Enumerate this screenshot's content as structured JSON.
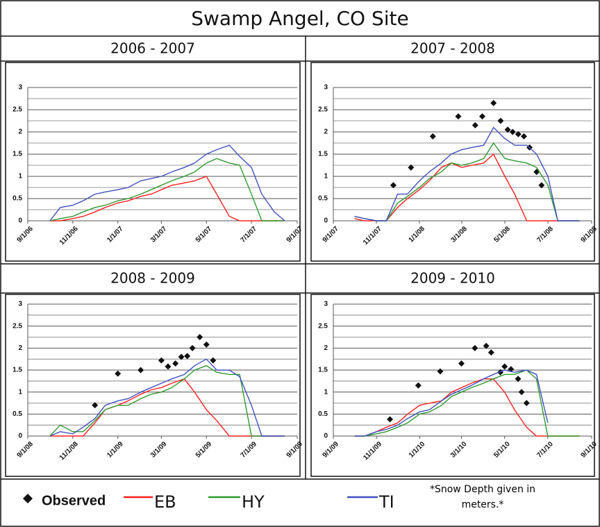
{
  "title": "Swamp Angel, CO Site",
  "note": "*Snow Depth given in meters.*",
  "chart_data": [
    {
      "type": "line",
      "title": "2006 - 2007",
      "x": [
        "2006-10-01",
        "2006-10-15",
        "2006-11-01",
        "2006-11-15",
        "2006-12-01",
        "2006-12-15",
        "2007-01-01",
        "2007-01-15",
        "2007-02-01",
        "2007-02-15",
        "2007-03-01",
        "2007-03-15",
        "2007-04-01",
        "2007-04-15",
        "2007-05-01",
        "2007-05-15",
        "2007-06-01",
        "2007-06-15",
        "2007-07-01",
        "2007-07-15",
        "2007-08-01",
        "2007-08-15"
      ],
      "series": [
        {
          "name": "EB",
          "color": "#ff2020",
          "values": [
            0,
            0,
            0.05,
            0.1,
            0.2,
            0.3,
            0.4,
            0.45,
            0.55,
            0.6,
            0.7,
            0.8,
            0.85,
            0.9,
            1.0,
            0.6,
            0.1,
            0,
            0,
            0,
            0,
            0
          ]
        },
        {
          "name": "HY",
          "color": "#2e9a2e",
          "values": [
            0,
            0.05,
            0.1,
            0.2,
            0.3,
            0.35,
            0.45,
            0.5,
            0.6,
            0.7,
            0.8,
            0.9,
            1.0,
            1.1,
            1.3,
            1.4,
            1.3,
            1.25,
            0.6,
            0,
            0,
            0
          ]
        },
        {
          "name": "TI",
          "color": "#4050c0",
          "values": [
            0,
            0.3,
            0.35,
            0.45,
            0.6,
            0.65,
            0.7,
            0.75,
            0.9,
            0.95,
            1.0,
            1.1,
            1.2,
            1.3,
            1.5,
            1.6,
            1.7,
            1.45,
            1.2,
            0.6,
            0.2,
            0
          ]
        }
      ],
      "xlim": [
        "2006-09-01",
        "2007-09-01"
      ],
      "xticks": [
        {
          "value": "2006-09-01",
          "label": "9/1/06"
        },
        {
          "value": "2006-11-01",
          "label": "11/1/06"
        },
        {
          "value": "2007-01-01",
          "label": "1/1/07"
        },
        {
          "value": "2007-03-01",
          "label": "3/1/07"
        },
        {
          "value": "2007-05-01",
          "label": "5/1/07"
        },
        {
          "value": "2007-07-01",
          "label": "7/1/07"
        },
        {
          "value": "2007-09-01",
          "label": "9/1/07"
        }
      ],
      "ylim": [
        0,
        3
      ],
      "yticks": [
        0,
        0.5,
        1,
        1.5,
        2,
        2.5,
        3
      ],
      "minor_yticks": [
        0.25,
        0.75,
        1.25,
        1.75,
        2.25,
        2.75
      ],
      "grid": true
    },
    {
      "type": "line",
      "title": "2007 - 2008",
      "x": [
        "2007-10-01",
        "2007-10-15",
        "2007-11-01",
        "2007-11-15",
        "2007-12-01",
        "2007-12-15",
        "2008-01-01",
        "2008-01-15",
        "2008-02-01",
        "2008-02-15",
        "2008-03-01",
        "2008-03-15",
        "2008-04-01",
        "2008-04-15",
        "2008-05-01",
        "2008-05-15",
        "2008-06-01",
        "2008-06-15",
        "2008-07-01",
        "2008-07-15",
        "2008-08-01",
        "2008-08-15"
      ],
      "series": [
        {
          "name": "Observed",
          "type": "scatter",
          "color": "#111111",
          "x": [
            "2007-11-25",
            "2007-12-20",
            "2008-01-20",
            "2008-02-25",
            "2008-03-20",
            "2008-03-30",
            "2008-04-15",
            "2008-04-25",
            "2008-05-05",
            "2008-05-12",
            "2008-05-20",
            "2008-05-28",
            "2008-06-05",
            "2008-06-15",
            "2008-06-22"
          ],
          "values": [
            0.8,
            1.2,
            1.9,
            2.35,
            2.15,
            2.35,
            2.65,
            2.25,
            2.05,
            2.0,
            1.95,
            1.9,
            1.65,
            1.1,
            0.8
          ]
        },
        {
          "name": "EB",
          "color": "#ff2020",
          "values": [
            0.05,
            0,
            0,
            0,
            0.3,
            0.5,
            0.7,
            0.9,
            1.2,
            1.3,
            1.2,
            1.25,
            1.3,
            1.5,
            1.0,
            0.6,
            0,
            0,
            0,
            0,
            0,
            0
          ]
        },
        {
          "name": "HY",
          "color": "#2e9a2e",
          "values": [
            0.1,
            0.05,
            0,
            0,
            0.4,
            0.55,
            0.75,
            0.95,
            1.1,
            1.3,
            1.25,
            1.3,
            1.4,
            1.75,
            1.4,
            1.35,
            1.3,
            1.2,
            0.8,
            0,
            0,
            0
          ]
        },
        {
          "name": "TI",
          "color": "#4050c0",
          "values": [
            0.1,
            0.05,
            0,
            0,
            0.6,
            0.6,
            0.9,
            1.1,
            1.3,
            1.5,
            1.6,
            1.65,
            1.7,
            2.1,
            1.85,
            1.7,
            1.7,
            1.5,
            1.0,
            0,
            0,
            0
          ]
        }
      ],
      "xlim": [
        "2007-09-01",
        "2008-09-01"
      ],
      "xticks": [
        {
          "value": "2007-09-01",
          "label": "9/1/07"
        },
        {
          "value": "2007-11-01",
          "label": "11/1/07"
        },
        {
          "value": "2008-01-01",
          "label": "1/1/08"
        },
        {
          "value": "2008-03-01",
          "label": "3/1/08"
        },
        {
          "value": "2008-05-01",
          "label": "5/1/08"
        },
        {
          "value": "2008-07-01",
          "label": "7/1/08"
        },
        {
          "value": "2008-09-01",
          "label": "9/1/08"
        }
      ],
      "ylim": [
        0,
        3
      ],
      "yticks": [
        0,
        0.5,
        1,
        1.5,
        2,
        2.5,
        3
      ],
      "minor_yticks": [
        0.25,
        0.75,
        1.25,
        1.75,
        2.25,
        2.75
      ],
      "grid": true
    },
    {
      "type": "line",
      "title": "2008 - 2009",
      "x": [
        "2008-10-01",
        "2008-10-15",
        "2008-11-01",
        "2008-11-15",
        "2008-12-01",
        "2008-12-15",
        "2009-01-01",
        "2009-01-15",
        "2009-02-01",
        "2009-02-15",
        "2009-03-01",
        "2009-03-15",
        "2009-04-01",
        "2009-04-15",
        "2009-05-01",
        "2009-05-15",
        "2009-06-01",
        "2009-06-15",
        "2009-07-01",
        "2009-07-15",
        "2009-08-01",
        "2009-08-15"
      ],
      "series": [
        {
          "name": "Observed",
          "type": "scatter",
          "color": "#111111",
          "x": [
            "2008-12-01",
            "2009-01-01",
            "2009-02-01",
            "2009-03-01",
            "2009-03-10",
            "2009-03-20",
            "2009-03-28",
            "2009-04-05",
            "2009-04-12",
            "2009-04-22",
            "2009-05-01",
            "2009-05-10"
          ],
          "values": [
            0.7,
            1.42,
            1.5,
            1.72,
            1.58,
            1.65,
            1.8,
            1.82,
            2.0,
            2.25,
            2.08,
            1.72
          ]
        },
        {
          "name": "EB",
          "color": "#ff2020",
          "values": [
            0,
            0,
            0,
            0,
            0.3,
            0.6,
            0.7,
            0.8,
            0.95,
            1.05,
            1.1,
            1.2,
            1.3,
            1.0,
            0.6,
            0.35,
            0,
            0,
            0,
            0,
            0,
            0
          ]
        },
        {
          "name": "HY",
          "color": "#2e9a2e",
          "values": [
            0,
            0.25,
            0.1,
            0.1,
            0.35,
            0.6,
            0.7,
            0.7,
            0.85,
            0.95,
            1.0,
            1.1,
            1.3,
            1.5,
            1.6,
            1.45,
            1.4,
            1.4,
            0,
            0,
            0,
            0
          ]
        },
        {
          "name": "TI",
          "color": "#4050c0",
          "values": [
            0,
            0.1,
            0.05,
            0.2,
            0.4,
            0.7,
            0.8,
            0.85,
            1.0,
            1.1,
            1.2,
            1.3,
            1.4,
            1.6,
            1.75,
            1.5,
            1.5,
            1.35,
            0.7,
            0,
            0,
            0
          ]
        }
      ],
      "xlim": [
        "2008-09-01",
        "2009-09-01"
      ],
      "xticks": [
        {
          "value": "2008-09-01",
          "label": "9/1/08"
        },
        {
          "value": "2008-11-01",
          "label": "11/1/08"
        },
        {
          "value": "2009-01-01",
          "label": "1/1/09"
        },
        {
          "value": "2009-03-01",
          "label": "3/1/09"
        },
        {
          "value": "2009-05-01",
          "label": "5/1/09"
        },
        {
          "value": "2009-07-01",
          "label": "7/1/09"
        },
        {
          "value": "2009-09-01",
          "label": "9/1/09"
        }
      ],
      "ylim": [
        0,
        3
      ],
      "yticks": [
        0,
        0.5,
        1,
        1.5,
        2,
        2.5,
        3
      ],
      "minor_yticks": [
        0.25,
        0.75,
        1.25,
        1.75,
        2.25,
        2.75
      ],
      "grid": true
    },
    {
      "type": "line",
      "title": "2009 - 2010",
      "x": [
        "2009-10-01",
        "2009-10-15",
        "2009-11-01",
        "2009-11-15",
        "2009-12-01",
        "2009-12-15",
        "2010-01-01",
        "2010-01-15",
        "2010-02-01",
        "2010-02-15",
        "2010-03-01",
        "2010-03-15",
        "2010-04-01",
        "2010-04-15",
        "2010-05-01",
        "2010-05-15",
        "2010-06-01",
        "2010-06-15",
        "2010-07-01",
        "2010-07-15",
        "2010-08-01",
        "2010-08-15"
      ],
      "series": [
        {
          "name": "Observed",
          "type": "scatter",
          "color": "#111111",
          "x": [
            "2009-11-20",
            "2009-12-30",
            "2010-01-30",
            "2010-03-01",
            "2010-03-20",
            "2010-04-05",
            "2010-04-12",
            "2010-04-25",
            "2010-05-01",
            "2010-05-10",
            "2010-05-20",
            "2010-05-25",
            "2010-06-01"
          ],
          "values": [
            0.38,
            1.15,
            1.47,
            1.65,
            2.0,
            2.05,
            1.9,
            1.45,
            1.58,
            1.52,
            1.3,
            1.0,
            0.75
          ]
        },
        {
          "name": "EB",
          "color": "#ff2020",
          "values": [
            0,
            0,
            0.1,
            0.2,
            0.3,
            0.5,
            0.7,
            0.75,
            0.8,
            1.0,
            1.1,
            1.2,
            1.3,
            1.3,
            1.0,
            0.6,
            0.2,
            0,
            0,
            0,
            0,
            0
          ]
        },
        {
          "name": "HY",
          "color": "#2e9a2e",
          "values": [
            0,
            0,
            0.05,
            0.1,
            0.2,
            0.3,
            0.5,
            0.55,
            0.7,
            0.9,
            1.0,
            1.1,
            1.2,
            1.3,
            1.4,
            1.4,
            1.5,
            1.3,
            0,
            0,
            0,
            0
          ]
        },
        {
          "name": "TI",
          "color": "#4050c0",
          "values": [
            0,
            0,
            0.1,
            0.15,
            0.25,
            0.4,
            0.55,
            0.6,
            0.8,
            0.95,
            1.05,
            1.15,
            1.3,
            1.4,
            1.5,
            1.45,
            1.5,
            1.4,
            0.3,
            null,
            null,
            null
          ]
        }
      ],
      "xlim": [
        "2009-09-01",
        "2010-09-01"
      ],
      "xticks": [
        {
          "value": "2009-09-01",
          "label": "9/1/09"
        },
        {
          "value": "2009-11-01",
          "label": "11/1/09"
        },
        {
          "value": "2010-01-01",
          "label": "1/1/10"
        },
        {
          "value": "2010-03-01",
          "label": "3/1/10"
        },
        {
          "value": "2010-05-01",
          "label": "5/1/10"
        },
        {
          "value": "2010-07-01",
          "label": "7/1/10"
        },
        {
          "value": "2010-09-01",
          "label": "9/1/10"
        }
      ],
      "ylim": [
        0,
        3
      ],
      "yticks": [
        0,
        0.5,
        1,
        1.5,
        2,
        2.5,
        3
      ],
      "minor_yticks": [
        0.25,
        0.75,
        1.25,
        1.75,
        2.25,
        2.75
      ],
      "grid": true
    }
  ]
}
